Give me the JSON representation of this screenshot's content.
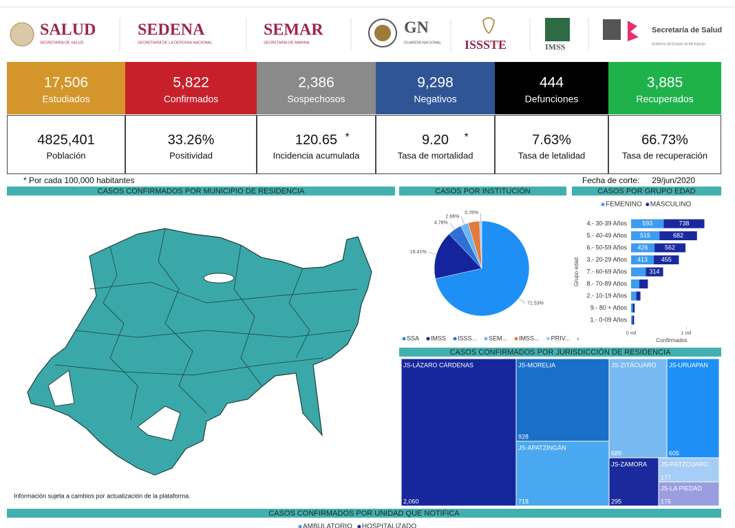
{
  "header": {
    "logos": [
      {
        "name": "SALUD",
        "sub": "SECRETARÍA DE SALUD"
      },
      {
        "name": "SEDENA",
        "sub": "SECRETARÍA DE LA DEFENSA NACIONAL"
      },
      {
        "name": "SEMAR",
        "sub": "SECRETARÍA DE MARINA"
      },
      {
        "name": "GN",
        "sub": "GUARDIA NACIONAL"
      },
      {
        "name": "ISSSTE"
      },
      {
        "name": "IMSS"
      },
      {
        "name": "Secretaría de Salud",
        "sub": "Gobierno del Estado de Michoacán"
      }
    ]
  },
  "kpis": [
    {
      "value": "17,506",
      "label": "Estudiados",
      "color": "#d4962a"
    },
    {
      "value": "5,822",
      "label": "Confirmados",
      "color": "#c8202a"
    },
    {
      "value": "2,386",
      "label": "Sospechosos",
      "color": "#8a8a8a"
    },
    {
      "value": "9,298",
      "label": "Negativos",
      "color": "#2f5597"
    },
    {
      "value": "444",
      "label": "Defunciones",
      "color": "#000000"
    },
    {
      "value": "3,885",
      "label": "Recuperados",
      "color": "#1fb24a"
    }
  ],
  "stats": [
    {
      "value": "4825,401",
      "label": "Población"
    },
    {
      "value": "33.26%",
      "label": "Positividad"
    },
    {
      "value": "120.65",
      "mark": "*",
      "label": "Incidencia acumulada"
    },
    {
      "value": "9.20",
      "mark": "*",
      "label": "Tasa de mortalidad"
    },
    {
      "value": "7.63%",
      "label": "Tasa de letalidad"
    },
    {
      "value": "66.73%",
      "label": "Tasa de recuperación"
    }
  ],
  "note": "* Por cada 100,000 habitantes",
  "cutoff_label": "Fecha de corte:",
  "cutoff_date": "29/jun/2020",
  "map": {
    "title": "CASOS CONFIRMADOS POR MUNICIPIO DE RESIDENCIA",
    "footnote": "Información sujeta a cambios por actualización de la plataforma."
  },
  "chart_data": [
    {
      "type": "pie",
      "title": "CASOS POR INSTITUCIÓN",
      "categories": [
        "SSA",
        "IMSS",
        "ISSS...",
        "SEM...",
        "IMSS...",
        "PRIV..."
      ],
      "values": [
        71.53,
        16.41,
        4.78,
        2.66,
        3.86,
        0.76
      ],
      "value_labels": [
        "71.53%",
        "16.41%",
        "4.78%",
        "2.66%",
        null,
        "0.76%"
      ],
      "colors": [
        "#1e8ff5",
        "#14249c",
        "#2f6fd6",
        "#6fb4f0",
        "#e07b3c",
        "#a9c9f2"
      ]
    },
    {
      "type": "hbar_stacked",
      "title": "CASOS POR GRUPO EDAD",
      "categories": [
        "4.- 30-39 Años",
        "5.- 40-49 Años",
        "6.- 50-59 Años",
        "3.- 20-29 Años",
        "7.- 60-69 Años",
        "8.- 70-89 Años",
        "2.- 10-19 Años",
        "9.- 80 + Años",
        "1.- 0-09 Años"
      ],
      "series": [
        {
          "name": "FEMENINO",
          "color": "#3d9bf0",
          "values": [
            593,
            515,
            426,
            413,
            268,
            150,
            95,
            30,
            25
          ]
        },
        {
          "name": "MASCULINO",
          "color": "#1a2a9c",
          "values": [
            738,
            682,
            562,
            455,
            314,
            155,
            75,
            35,
            30
          ]
        }
      ],
      "xlim": [
        0,
        1340
      ],
      "xticks": [
        {
          "value": 0,
          "label": "0 mil"
        },
        {
          "value": 1000,
          "label": "1 mil"
        }
      ],
      "xlabel": "Confirmados",
      "ylabel": "Grupo edad"
    },
    {
      "type": "treemap",
      "title": "CASOS CONFIRMADOS POR JURISDICCIÓN DE RESIDENCIA",
      "categories": [
        "JS-LÁZARO CÁRDENAS",
        "JS-MORELIA",
        "JS-APATZINGÁN",
        "JS-ZITÁCUARO",
        "JS-URUAPAN",
        "JS-ZAMORA",
        "JS-PÁTZCUARO",
        "JS-LA PIEDAD"
      ],
      "values": [
        2060,
        928,
        718,
        689,
        605,
        295,
        177,
        176
      ],
      "value_labels": [
        "2,060",
        "928",
        "718",
        "689",
        "605",
        "295",
        "177",
        "176"
      ],
      "colors": [
        "#16279c",
        "#1a6fc9",
        "#4aa8f0",
        "#78b9f2",
        "#1e8ff5",
        "#1a2a9c",
        "#a6cdf5",
        "#9a9ee0"
      ]
    }
  ],
  "unit_section": {
    "title": "CASOS CONFIRMADOS POR UNIDAD QUE NOTIFICA",
    "legend": [
      {
        "name": "AMBULATORIO",
        "color": "#3d9bf0"
      },
      {
        "name": "HOSPITALIZADO",
        "color": "#1a2a9c"
      }
    ]
  }
}
